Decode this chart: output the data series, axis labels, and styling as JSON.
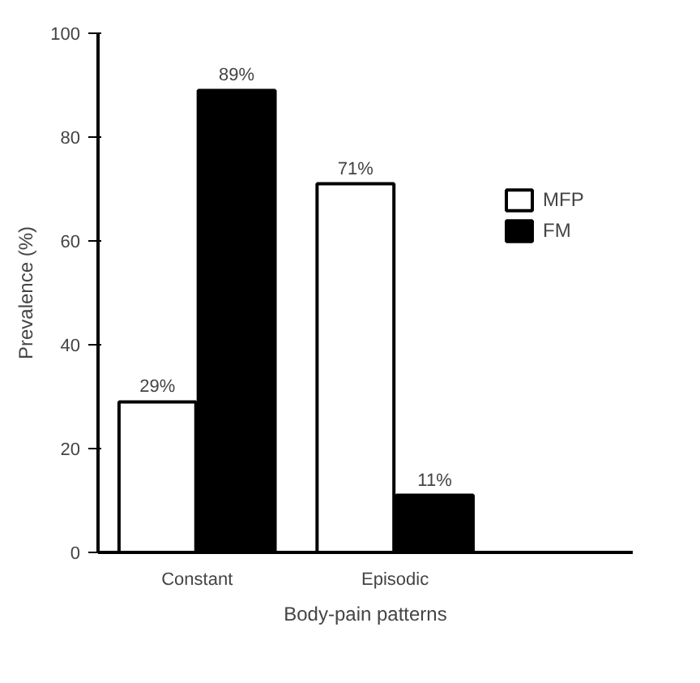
{
  "chart_data": {
    "type": "bar",
    "xlabel": "Body-pain patterns",
    "ylabel": "Prevalence (%)",
    "categories": [
      "Constant",
      "Episodic"
    ],
    "series": [
      {
        "name": "MFP",
        "color": "#ffffff",
        "values": [
          29,
          71
        ],
        "value_labels": [
          "29%",
          "71%"
        ]
      },
      {
        "name": "FM",
        "color": "#000000",
        "values": [
          89,
          11
        ],
        "value_labels": [
          "89%",
          "11%"
        ]
      }
    ],
    "ylim": [
      0,
      100
    ],
    "yticks": [
      0,
      20,
      40,
      60,
      80,
      100
    ],
    "grid": false,
    "legend": "right"
  }
}
